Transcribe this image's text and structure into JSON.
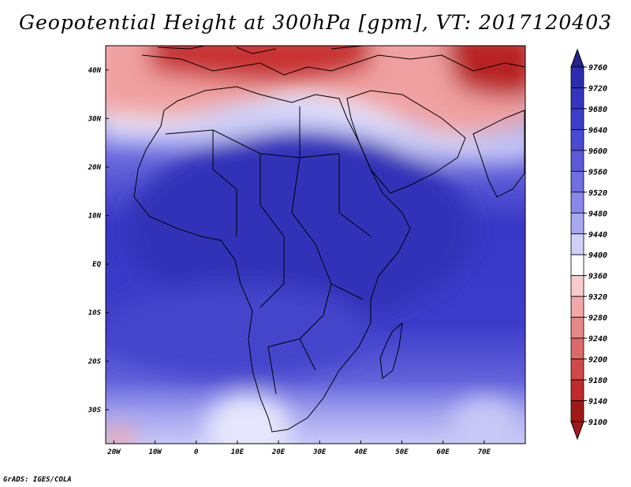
{
  "title": "Geopotential Height at 300hPa [gpm], VT: 2017120403",
  "credit": "GrADS: IGES/COLA",
  "map": {
    "lon_labels": [
      "20W",
      "10W",
      "0",
      "10E",
      "20E",
      "30E",
      "40E",
      "50E",
      "60E",
      "70E"
    ],
    "lat_labels": [
      "40N",
      "30N",
      "20N",
      "10N",
      "EQ",
      "10S",
      "20S",
      "30S"
    ],
    "lon_range": [
      -22,
      80
    ],
    "lat_range": [
      -37,
      45
    ]
  },
  "colorbar": {
    "levels": [
      9760,
      9720,
      9680,
      9640,
      9600,
      9560,
      9520,
      9480,
      9440,
      9400,
      9360,
      9320,
      9280,
      9240,
      9200,
      9180,
      9140,
      9100
    ],
    "colors": [
      "#23238c",
      "#2c2cae",
      "#3434c0",
      "#3d3dcb",
      "#4a4ad2",
      "#5a5ad9",
      "#6f6fe0",
      "#8888e8",
      "#a8a8f0",
      "#cfcff8",
      "#ffffff",
      "#f8cccc",
      "#f0a8a8",
      "#e68888",
      "#dc6a6a",
      "#d04848",
      "#c02a2a",
      "#a01818"
    ]
  }
}
